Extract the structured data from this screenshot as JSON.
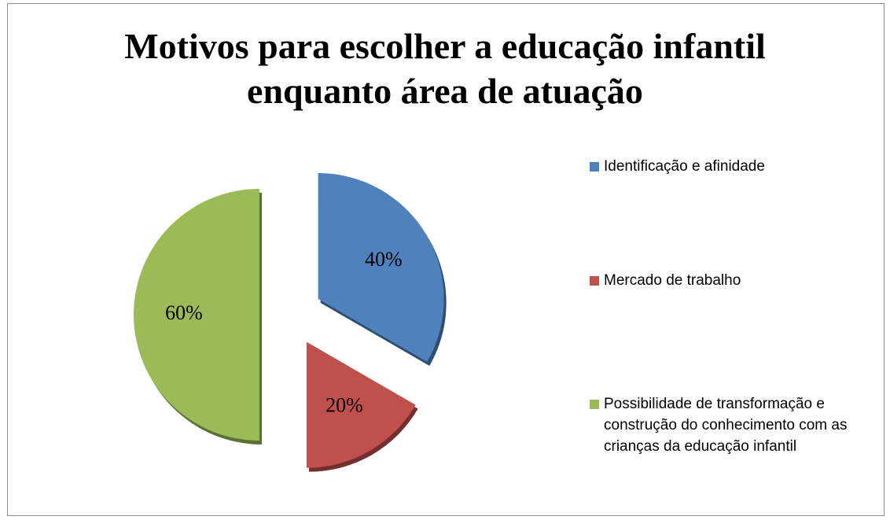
{
  "chart_data": {
    "type": "pie",
    "title": "Motivos para escolher a educação infantil enquanto área de atuação",
    "categories": [
      "Identificação e afinidade",
      "Mercado de trabalho",
      "Possibilidade de transformação e construção do conhecimento com as crianças da educação infantil"
    ],
    "values": [
      40,
      20,
      60
    ],
    "value_labels": [
      "40%",
      "20%",
      "60%"
    ],
    "colors": [
      "#4f81bd",
      "#c0504d",
      "#9bbb59"
    ],
    "legend": "right"
  }
}
